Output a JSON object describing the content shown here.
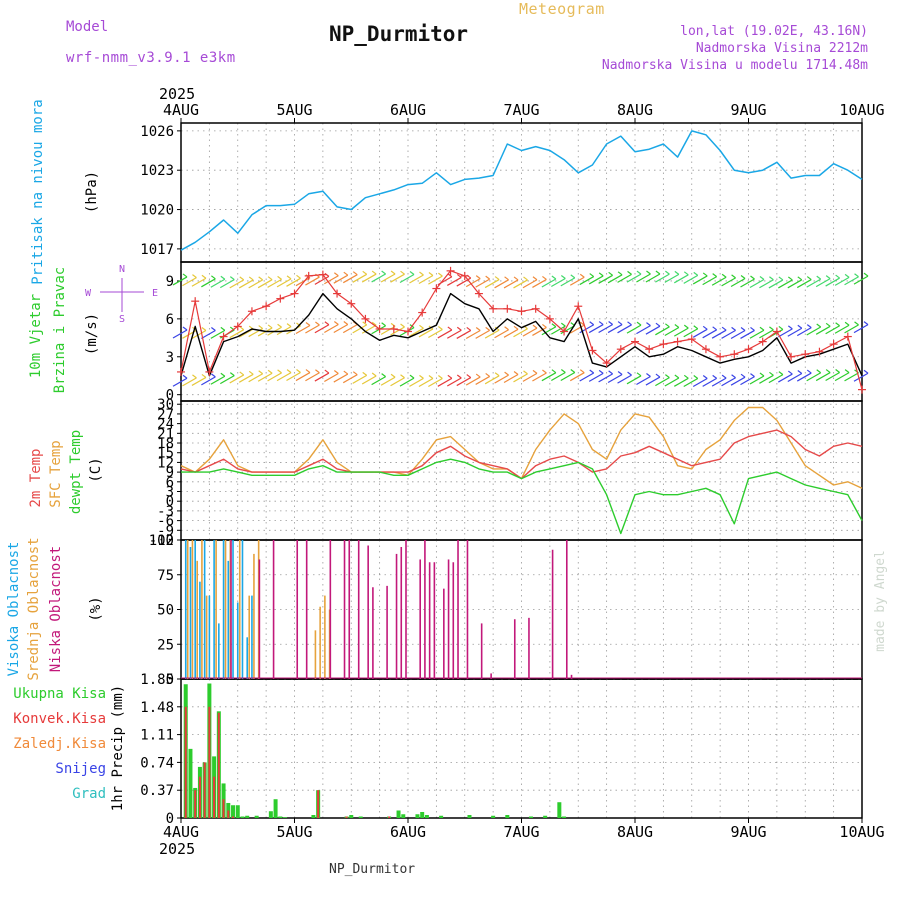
{
  "header": {
    "model_label": "Model",
    "model_value": "wrf-nmm_v3.9.1 e3km",
    "product": "Meteogram",
    "station": "NP_Durmitor",
    "coords": "lon,lat (19.02E, 43.16N)",
    "elevation": "Nadmorska Visina 2212m",
    "model_elevation": "Nadmorska Visina u modelu 1714.48m",
    "footer_station": "NP_Durmitor",
    "credit": "made by Angel"
  },
  "colors": {
    "pressure": "#1aa7e6",
    "wind_speed": "#000000",
    "gust": "#e63a3a",
    "temp2m": "#e64a4a",
    "sfc_temp": "#e6a23c",
    "dewpoint": "#2dcc2d",
    "cloud_high": "#1aa7e6",
    "cloud_mid": "#e6a23c",
    "cloud_low": "#c2187a",
    "precip_total": "#2dcc2d",
    "precip_conv": "#e63a3a",
    "purple": "#a64ad6",
    "gold": "#e6bb5a"
  },
  "x_axis": {
    "year": "2025",
    "days": [
      "4AUG",
      "5AUG",
      "6AUG",
      "7AUG",
      "8AUG",
      "9AUG",
      "10AUG"
    ]
  },
  "chart_data": [
    {
      "type": "line",
      "title": "Pritisak na nivou mora",
      "ylabel": "(hPa)",
      "ylim": [
        1016,
        1026.6
      ],
      "yticks": [
        "1017",
        "1020",
        "1023",
        "1026"
      ],
      "x_unit": "hours since 4AUG 00",
      "series": [
        {
          "name": "pressure",
          "x": [
            0,
            3,
            6,
            9,
            12,
            15,
            18,
            21,
            24,
            27,
            30,
            33,
            36,
            39,
            42,
            45,
            48,
            51,
            54,
            57,
            60,
            63,
            66,
            69,
            72,
            75,
            78,
            81,
            84,
            87,
            90,
            93,
            96,
            99,
            102,
            105,
            108,
            111,
            114,
            117,
            120,
            123,
            126,
            129,
            132,
            135,
            138,
            141,
            144
          ],
          "y": [
            1016.9,
            1017.5,
            1018.3,
            1019.2,
            1018.2,
            1019.6,
            1020.3,
            1020.3,
            1020.4,
            1021.2,
            1021.4,
            1020.2,
            1020.0,
            1020.9,
            1021.2,
            1021.5,
            1021.9,
            1022.0,
            1022.8,
            1021.9,
            1022.3,
            1022.4,
            1022.6,
            1025.0,
            1024.5,
            1024.8,
            1024.5,
            1023.8,
            1022.8,
            1023.4,
            1025.0,
            1025.6,
            1024.4,
            1024.6,
            1025.0,
            1024.0,
            1026.0,
            1025.7,
            1024.5,
            1023.0,
            1022.8,
            1023.0,
            1023.6,
            1022.4,
            1022.6,
            1022.6,
            1023.5,
            1023.0,
            1022.3
          ]
        }
      ]
    },
    {
      "type": "line",
      "title": "10m Vjetar Brzina i Pravac",
      "ylabel": "(m/s)",
      "ylim": [
        -0.5,
        10.5
      ],
      "yticks": [
        "0",
        "3",
        "6",
        "9"
      ],
      "compass": [
        "N",
        "W",
        "E",
        "S"
      ],
      "series": [
        {
          "name": "wind_speed",
          "x": [
            0,
            3,
            6,
            9,
            12,
            15,
            18,
            21,
            24,
            27,
            30,
            33,
            36,
            39,
            42,
            45,
            48,
            51,
            54,
            57,
            60,
            63,
            66,
            69,
            72,
            75,
            78,
            81,
            84,
            87,
            90,
            93,
            96,
            99,
            102,
            105,
            108,
            111,
            114,
            117,
            120,
            123,
            126,
            129,
            132,
            135,
            138,
            141,
            144
          ],
          "y": [
            1.5,
            5.4,
            1.5,
            4.2,
            4.6,
            5.2,
            5.0,
            5.0,
            5.1,
            6.3,
            8.0,
            6.8,
            6.0,
            5.0,
            4.3,
            4.7,
            4.5,
            5.0,
            5.5,
            8.0,
            7.2,
            6.8,
            5.0,
            6.0,
            5.3,
            5.8,
            4.5,
            4.2,
            6.0,
            2.5,
            2.2,
            3.0,
            3.8,
            3.0,
            3.2,
            3.8,
            3.5,
            3.0,
            2.5,
            2.8,
            3.0,
            3.5,
            4.5,
            2.5,
            3.0,
            3.2,
            3.6,
            4.0,
            1.5
          ]
        },
        {
          "name": "gust",
          "x": [
            0,
            3,
            6,
            9,
            12,
            15,
            18,
            21,
            24,
            27,
            30,
            33,
            36,
            39,
            42,
            45,
            48,
            51,
            54,
            57,
            60,
            63,
            66,
            69,
            72,
            75,
            78,
            81,
            84,
            87,
            90,
            93,
            96,
            99,
            102,
            105,
            108,
            111,
            114,
            117,
            120,
            123,
            126,
            129,
            132,
            135,
            138,
            141,
            144
          ],
          "y": [
            1.8,
            7.4,
            1.8,
            4.6,
            5.4,
            6.6,
            7.0,
            7.6,
            8.0,
            9.4,
            9.5,
            8.0,
            7.2,
            6.0,
            5.2,
            5.2,
            5.0,
            6.5,
            8.4,
            9.8,
            9.4,
            8.0,
            6.8,
            6.8,
            6.6,
            6.8,
            6.0,
            5.0,
            7.0,
            3.5,
            2.5,
            3.6,
            4.2,
            3.6,
            4.0,
            4.2,
            4.4,
            3.6,
            3.0,
            3.2,
            3.6,
            4.2,
            5.0,
            3.0,
            3.2,
            3.4,
            4.0,
            4.6,
            0.4
          ]
        }
      ]
    },
    {
      "type": "line",
      "title": "2m Temp / SFC Temp / dewpt Temp",
      "ylabel": "(C)",
      "ylim": [
        -12,
        31
      ],
      "yticks": [
        "30",
        "27",
        "24",
        "21",
        "18",
        "15",
        "12",
        "9",
        "6",
        "3",
        "0",
        "-3",
        "-6",
        "-9",
        "-12"
      ],
      "series": [
        {
          "name": "2m Temp",
          "x": [
            0,
            3,
            6,
            9,
            12,
            15,
            18,
            21,
            24,
            27,
            30,
            33,
            36,
            39,
            42,
            45,
            48,
            51,
            54,
            57,
            60,
            63,
            66,
            69,
            72,
            75,
            78,
            81,
            84,
            87,
            90,
            93,
            96,
            99,
            102,
            105,
            108,
            111,
            114,
            117,
            120,
            123,
            126,
            129,
            132,
            135,
            138,
            141,
            144
          ],
          "y": [
            10,
            9,
            11,
            13,
            10,
            9,
            9,
            9,
            9,
            11,
            13,
            10,
            9,
            9,
            9,
            9,
            9,
            11,
            15,
            17,
            14,
            12,
            11,
            10,
            7,
            11,
            13,
            14,
            12,
            9,
            10,
            14,
            15,
            17,
            15,
            13,
            11,
            12,
            13,
            18,
            20,
            21,
            22,
            20,
            16,
            14,
            17,
            18,
            17
          ]
        },
        {
          "name": "SFC Temp",
          "x": [
            0,
            3,
            6,
            9,
            12,
            15,
            18,
            21,
            24,
            27,
            30,
            33,
            36,
            39,
            42,
            45,
            48,
            51,
            54,
            57,
            60,
            63,
            66,
            69,
            72,
            75,
            78,
            81,
            84,
            87,
            90,
            93,
            96,
            99,
            102,
            105,
            108,
            111,
            114,
            117,
            120,
            123,
            126,
            129,
            132,
            135,
            138,
            141,
            144
          ],
          "y": [
            11,
            9,
            13,
            19,
            11,
            9,
            9,
            9,
            9,
            13,
            19,
            12,
            9,
            9,
            9,
            9,
            8,
            13,
            19,
            20,
            16,
            12,
            10,
            10,
            7,
            16,
            22,
            27,
            24,
            16,
            13,
            22,
            27,
            26,
            20,
            11,
            10,
            16,
            19,
            25,
            29,
            29,
            25,
            18,
            11,
            8,
            5,
            6,
            4
          ]
        },
        {
          "name": "dewpt Temp",
          "x": [
            0,
            3,
            6,
            9,
            12,
            15,
            18,
            21,
            24,
            27,
            30,
            33,
            36,
            39,
            42,
            45,
            48,
            51,
            54,
            57,
            60,
            63,
            66,
            69,
            72,
            75,
            78,
            81,
            84,
            87,
            90,
            93,
            96,
            99,
            102,
            105,
            108,
            111,
            114,
            117,
            120,
            123,
            126,
            129,
            132,
            135,
            138,
            141,
            144
          ],
          "y": [
            9,
            9,
            9,
            10,
            9,
            8,
            8,
            8,
            8,
            10,
            11,
            9,
            9,
            9,
            9,
            8,
            8,
            10,
            12,
            13,
            12,
            10,
            9,
            9,
            7,
            9,
            10,
            11,
            12,
            10,
            2,
            -10,
            2,
            3,
            2,
            2,
            3,
            4,
            2,
            -7,
            7,
            8,
            9,
            7,
            5,
            4,
            3,
            2,
            -6
          ]
        }
      ]
    },
    {
      "type": "bar",
      "title": "Visoka Oblacnost / Srednja Oblacnost / Niska Oblacnost",
      "ylabel": "(%)",
      "ylim": [
        0,
        100
      ],
      "yticks": [
        "0",
        "25",
        "50",
        "75",
        "100"
      ],
      "series": [
        {
          "name": "Visoka Oblacnost",
          "x": [
            1,
            2,
            3,
            4,
            5,
            6,
            7,
            8,
            9,
            10,
            11,
            12,
            13,
            14,
            15
          ],
          "y": [
            100,
            95,
            100,
            70,
            100,
            60,
            100,
            40,
            100,
            85,
            100,
            55,
            100,
            30,
            60
          ]
        },
        {
          "name": "Srednja Oblacnost",
          "x": [
            1,
            2,
            3,
            4,
            5,
            7,
            9,
            10,
            12,
            14,
            15,
            16,
            28,
            29,
            30,
            31
          ],
          "y": [
            100,
            100,
            85,
            100,
            60,
            100,
            100,
            100,
            100,
            60,
            90,
            100,
            35,
            52,
            60,
            50
          ]
        },
        {
          "name": "Niska Oblacnost",
          "x": [
            11,
            17,
            20,
            25,
            27,
            32,
            35,
            36,
            38,
            40,
            41,
            44,
            46,
            47,
            48,
            51,
            52,
            53,
            54,
            56,
            57,
            58,
            59,
            61,
            64,
            66,
            71,
            74,
            79,
            82,
            83
          ],
          "y": [
            100,
            86,
            100,
            100,
            100,
            100,
            100,
            100,
            100,
            96,
            66,
            67,
            90,
            95,
            100,
            86,
            100,
            84,
            84,
            65,
            86,
            84,
            100,
            100,
            40,
            4,
            43,
            44,
            93,
            100,
            3
          ]
        }
      ]
    },
    {
      "type": "bar",
      "title": "Ukupna Kisa / Konvek.Kisa / Zaledj.Kisa / Snijeg / Grad",
      "ylabel": "1hr Precip (mm)",
      "ylim": [
        0,
        1.85
      ],
      "yticks": [
        "0",
        "0.37",
        "0.74",
        "1.11",
        "1.48",
        "1.85"
      ],
      "series": [
        {
          "name": "Ukupna Kisa",
          "x": [
            1,
            2,
            3,
            4,
            5,
            6,
            7,
            8,
            9,
            10,
            11,
            12,
            13,
            14,
            16,
            19,
            20,
            21,
            22,
            28,
            29,
            35,
            36,
            38,
            44,
            46,
            47,
            50,
            51,
            52,
            55,
            61,
            66,
            69,
            74,
            77,
            80,
            81
          ],
          "y": [
            1.78,
            0.92,
            0.4,
            0.68,
            0.74,
            1.79,
            0.82,
            1.42,
            0.46,
            0.2,
            0.17,
            0.17,
            0.02,
            0.03,
            0.03,
            0.09,
            0.25,
            0.02,
            0.01,
            0.04,
            0.37,
            0.02,
            0.04,
            0.02,
            0.02,
            0.1,
            0.05,
            0.05,
            0.08,
            0.04,
            0.03,
            0.04,
            0.03,
            0.04,
            0.02,
            0.03,
            0.21,
            0.02
          ]
        },
        {
          "name": "Konvek.Kisa",
          "x": [
            1,
            3,
            4,
            5,
            6,
            7,
            8,
            9,
            10,
            11,
            29,
            35,
            44
          ],
          "y": [
            1.48,
            0.37,
            0.55,
            0.74,
            1.48,
            0.55,
            1.4,
            0.25,
            0.1,
            0.02,
            0.37,
            0.02,
            0.02
          ]
        }
      ]
    }
  ],
  "panels": {
    "pressure": {
      "label": "Pritisak na nivou mora",
      "unit": "(hPa)"
    },
    "wind": {
      "label1": "10m Vjetar",
      "label2": "Brzina i Pravac",
      "unit": "(m/s)"
    },
    "temp": {
      "label1": "2m Temp",
      "label2": "SFC Temp",
      "label3": "dewpt Temp",
      "unit": "(C)"
    },
    "cloud": {
      "label1": "Visoka Oblacnost",
      "label2": "Srednja Oblacnost",
      "label3": "Niska Oblacnost",
      "unit": "(%)"
    },
    "precip": {
      "labels": [
        "Ukupna Kisa",
        "Konvek.Kisa",
        "Zaledj.Kisa",
        "Snijeg",
        "Grad"
      ],
      "unit": "1hr Precip (mm)"
    }
  }
}
